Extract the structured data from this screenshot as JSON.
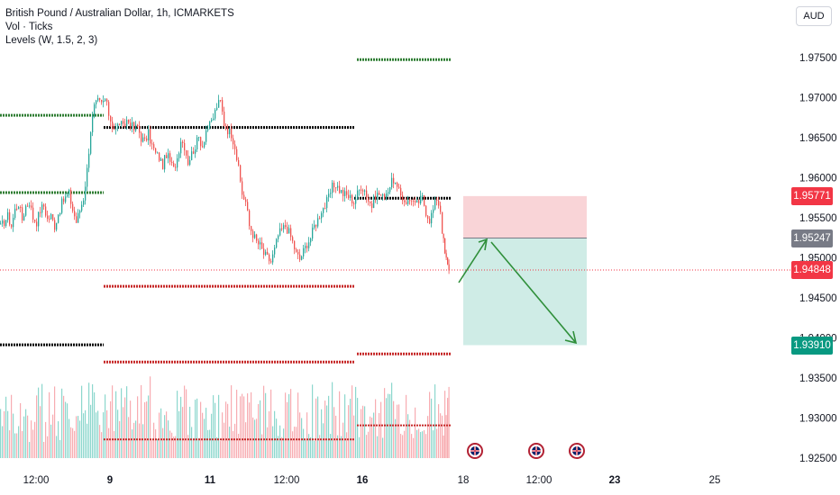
{
  "header": {
    "symbol_line": "British Pound / Australian Dollar, 1h, ICMARKETS",
    "vol_line": "Vol · Ticks",
    "levels_line": "Levels (W, 1.5, 2, 3)",
    "currency_button": "AUD"
  },
  "colors": {
    "up": "#26a69a",
    "down": "#ef5350",
    "support": "#c62828",
    "resistance_green": "#2e7d32",
    "pivot": "#000000",
    "stop_zone": "#f7c6c9",
    "target_zone": "#bfe6dd",
    "arrow": "#2f8f3a"
  },
  "price_labels": {
    "stop": {
      "text": "1.95771",
      "color": "#f23645"
    },
    "entry": {
      "text": "1.95247",
      "color": "#787b86"
    },
    "last": {
      "text": "1.94848",
      "color": "#f23645"
    },
    "target": {
      "text": "1.93910",
      "color": "#089981"
    }
  },
  "event_icons": [
    "flag-uk-icon",
    "flag-uk-icon",
    "flag-uk-icon"
  ],
  "chart_data": {
    "type": "candlestick",
    "title": "British Pound / Australian Dollar, 1h, ICMARKETS",
    "y_axis": {
      "ylim": [
        1.9225,
        1.9795
      ],
      "ticks": [
        "1.97500",
        "1.97000",
        "1.96500",
        "1.96000",
        "1.95500",
        "1.95000",
        "1.94500",
        "1.94000",
        "1.93500",
        "1.93000",
        "1.92500"
      ]
    },
    "x_axis": {
      "ticks": [
        "12:00",
        "9",
        "11",
        "12:00",
        "16",
        "18",
        "12:00",
        "23",
        "25"
      ]
    },
    "price_path": [
      [
        0,
        1.9538
      ],
      [
        4,
        1.9545
      ],
      [
        8,
        1.9552
      ],
      [
        12,
        1.954
      ],
      [
        16,
        1.956
      ],
      [
        20,
        1.9568
      ],
      [
        24,
        1.9548
      ],
      [
        28,
        1.9565
      ],
      [
        32,
        1.957
      ],
      [
        36,
        1.955
      ],
      [
        40,
        1.9545
      ],
      [
        44,
        1.956
      ],
      [
        48,
        1.9565
      ],
      [
        52,
        1.9548
      ],
      [
        56,
        1.9552
      ],
      [
        60,
        1.954
      ],
      [
        64,
        1.9555
      ],
      [
        68,
        1.9568
      ],
      [
        72,
        1.9575
      ],
      [
        76,
        1.958
      ],
      [
        80,
        1.956
      ],
      [
        84,
        1.9545
      ],
      [
        88,
        1.956
      ],
      [
        92,
        1.9575
      ],
      [
        96,
        1.961
      ],
      [
        100,
        1.966
      ],
      [
        104,
        1.9688
      ],
      [
        108,
        1.9695
      ],
      [
        112,
        1.9692
      ],
      [
        116,
        1.9698
      ],
      [
        120,
        1.968
      ],
      [
        124,
        1.9665
      ],
      [
        128,
        1.966
      ],
      [
        132,
        1.967
      ],
      [
        136,
        1.9662
      ],
      [
        140,
        1.9672
      ],
      [
        144,
        1.9668
      ],
      [
        148,
        1.966
      ],
      [
        152,
        1.9664
      ],
      [
        156,
        1.965
      ],
      [
        160,
        1.9645
      ],
      [
        164,
        1.9655
      ],
      [
        168,
        1.964
      ],
      [
        172,
        1.963
      ],
      [
        176,
        1.9625
      ],
      [
        180,
        1.9615
      ],
      [
        184,
        1.963
      ],
      [
        188,
        1.962
      ],
      [
        192,
        1.961
      ],
      [
        196,
        1.9625
      ],
      [
        200,
        1.9648
      ],
      [
        204,
        1.964
      ],
      [
        208,
        1.962
      ],
      [
        212,
        1.963
      ],
      [
        216,
        1.964
      ],
      [
        220,
        1.965
      ],
      [
        224,
        1.964
      ],
      [
        228,
        1.966
      ],
      [
        232,
        1.9665
      ],
      [
        236,
        1.9675
      ],
      [
        240,
        1.969
      ],
      [
        244,
        1.9695
      ],
      [
        248,
        1.9668
      ],
      [
        252,
        1.966
      ],
      [
        256,
        1.9655
      ],
      [
        260,
        1.964
      ],
      [
        264,
        1.961
      ],
      [
        268,
        1.958
      ],
      [
        272,
        1.957
      ],
      [
        276,
        1.954
      ],
      [
        280,
        1.953
      ],
      [
        284,
        1.952
      ],
      [
        288,
        1.9515
      ],
      [
        292,
        1.9505
      ],
      [
        296,
        1.95
      ],
      [
        300,
        1.9495
      ],
      [
        304,
        1.951
      ],
      [
        308,
        1.9528
      ],
      [
        312,
        1.9535
      ],
      [
        316,
        1.954
      ],
      [
        320,
        1.9532
      ],
      [
        324,
        1.952
      ],
      [
        328,
        1.9505
      ],
      [
        332,
        1.9498
      ],
      [
        336,
        1.9508
      ],
      [
        340,
        1.9518
      ],
      [
        344,
        1.9525
      ],
      [
        348,
        1.954
      ],
      [
        352,
        1.9548
      ],
      [
        356,
        1.956
      ],
      [
        360,
        1.9565
      ],
      [
        364,
        1.9575
      ],
      [
        368,
        1.9588
      ],
      [
        372,
        1.9592
      ],
      [
        376,
        1.9585
      ],
      [
        380,
        1.958
      ],
      [
        384,
        1.9578
      ],
      [
        388,
        1.9575
      ],
      [
        392,
        1.957
      ],
      [
        396,
        1.958
      ],
      [
        400,
        1.959
      ],
      [
        404,
        1.9585
      ],
      [
        408,
        1.9572
      ],
      [
        412,
        1.9565
      ],
      [
        416,
        1.9578
      ],
      [
        420,
        1.958
      ],
      [
        424,
        1.9575
      ],
      [
        428,
        1.9582
      ],
      [
        432,
        1.959
      ],
      [
        436,
        1.9598
      ],
      [
        440,
        1.9585
      ],
      [
        444,
        1.9578
      ],
      [
        448,
        1.9572
      ],
      [
        452,
        1.957
      ],
      [
        456,
        1.9575
      ],
      [
        460,
        1.9565
      ],
      [
        464,
        1.957
      ],
      [
        468,
        1.9575
      ],
      [
        472,
        1.9558
      ],
      [
        476,
        1.9548
      ],
      [
        480,
        1.956
      ],
      [
        484,
        1.9575
      ],
      [
        488,
        1.956
      ],
      [
        490,
        1.9535
      ],
      [
        493,
        1.9505
      ],
      [
        496,
        1.949
      ],
      [
        499,
        1.9485
      ]
    ],
    "levels": [
      {
        "price": 1.97475,
        "x": [
          396,
          500
        ],
        "color": "green"
      },
      {
        "price": 1.9678,
        "x": [
          0,
          115
        ],
        "color": "green"
      },
      {
        "price": 1.96628,
        "x": [
          115,
          393
        ],
        "color": "black"
      },
      {
        "price": 1.95815,
        "x": [
          0,
          115
        ],
        "color": "green"
      },
      {
        "price": 1.95745,
        "x": [
          393,
          500
        ],
        "color": "black"
      },
      {
        "price": 1.94645,
        "x": [
          115,
          393
        ],
        "color": "red"
      },
      {
        "price": 1.93915,
        "x": [
          0,
          115
        ],
        "color": "black"
      },
      {
        "price": 1.937,
        "x": [
          115,
          393
        ],
        "color": "red"
      },
      {
        "price": 1.938,
        "x": [
          396,
          500
        ],
        "color": "red"
      }
    ],
    "position": {
      "type": "short",
      "x": [
        514,
        651
      ],
      "entry": 1.95247,
      "stop": 1.95771,
      "target": 1.9391
    },
    "last_price": 1.94848,
    "volume": {
      "pane_levels": [
        {
          "x": [
            115,
            393
          ],
          "y_frac": 0.84
        },
        {
          "x": [
            396,
            500
          ],
          "y_frac": 0.72
        }
      ]
    }
  }
}
